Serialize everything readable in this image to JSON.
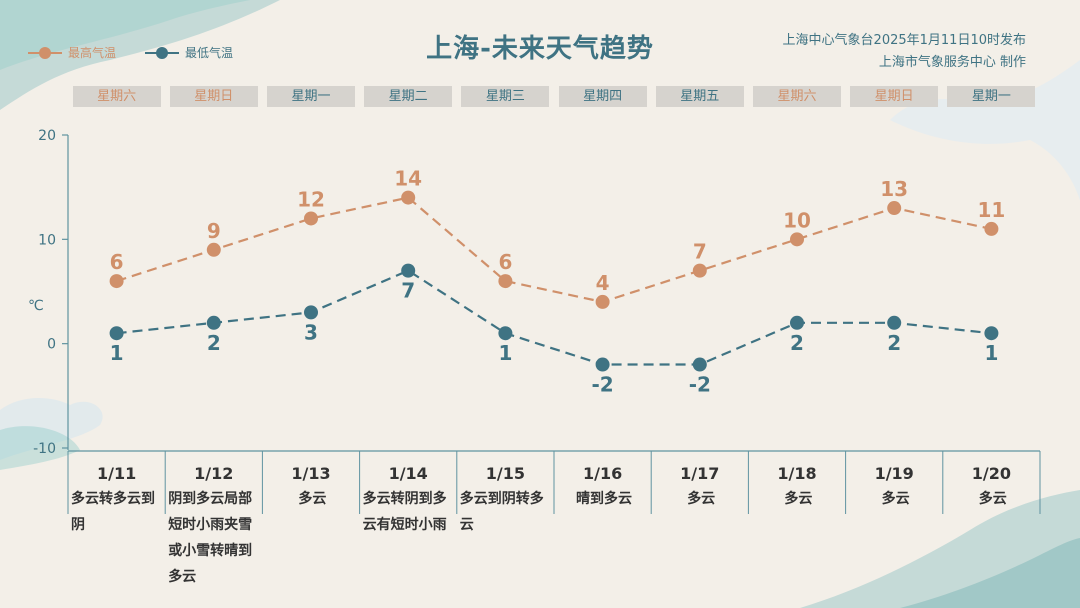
{
  "title": "上海-未来天气趋势",
  "source": {
    "line1": "上海中心气象台2025年1月11日10时发布",
    "line2": "上海市气象服务中心 制作"
  },
  "legend": [
    {
      "name": "最高气温",
      "color": "#d0906a"
    },
    {
      "name": "最低气温",
      "color": "#3f7383"
    }
  ],
  "weekdays": [
    "星期六",
    "星期日",
    "星期一",
    "星期二",
    "星期三",
    "星期四",
    "星期五",
    "星期六",
    "星期日",
    "星期一"
  ],
  "weekday_colors": [
    "#d0906a",
    "#d0906a",
    "#3f7383",
    "#3f7383",
    "#3f7383",
    "#3f7383",
    "#3f7383",
    "#d0906a",
    "#d0906a",
    "#3f7383"
  ],
  "descriptions": [
    "多云转多云到阴",
    "阴到多云局部短时小雨夹雪或小雪转晴到多云",
    "多云",
    "多云转阴到多云有短时小雨",
    "多云到阴转多云",
    "晴到多云",
    "多云",
    "多云",
    "多云",
    "多云"
  ],
  "chart_data": {
    "type": "line",
    "categories": [
      "1/11",
      "1/12",
      "1/13",
      "1/14",
      "1/15",
      "1/16",
      "1/17",
      "1/18",
      "1/19",
      "1/20"
    ],
    "series": [
      {
        "name": "最高气温",
        "values": [
          6,
          9,
          12,
          14,
          6,
          4,
          7,
          10,
          13,
          11
        ],
        "color": "#d0906a",
        "style": "dashed"
      },
      {
        "name": "最低气温",
        "values": [
          1,
          2,
          3,
          7,
          1,
          -2,
          -2,
          2,
          2,
          1
        ],
        "color": "#3f7383",
        "style": "dashed"
      }
    ],
    "ylabel": "℃",
    "ylim": [
      -10,
      20
    ],
    "yticks": [
      -10,
      0,
      10,
      20
    ],
    "grid": false,
    "legend_position": "top-left"
  }
}
